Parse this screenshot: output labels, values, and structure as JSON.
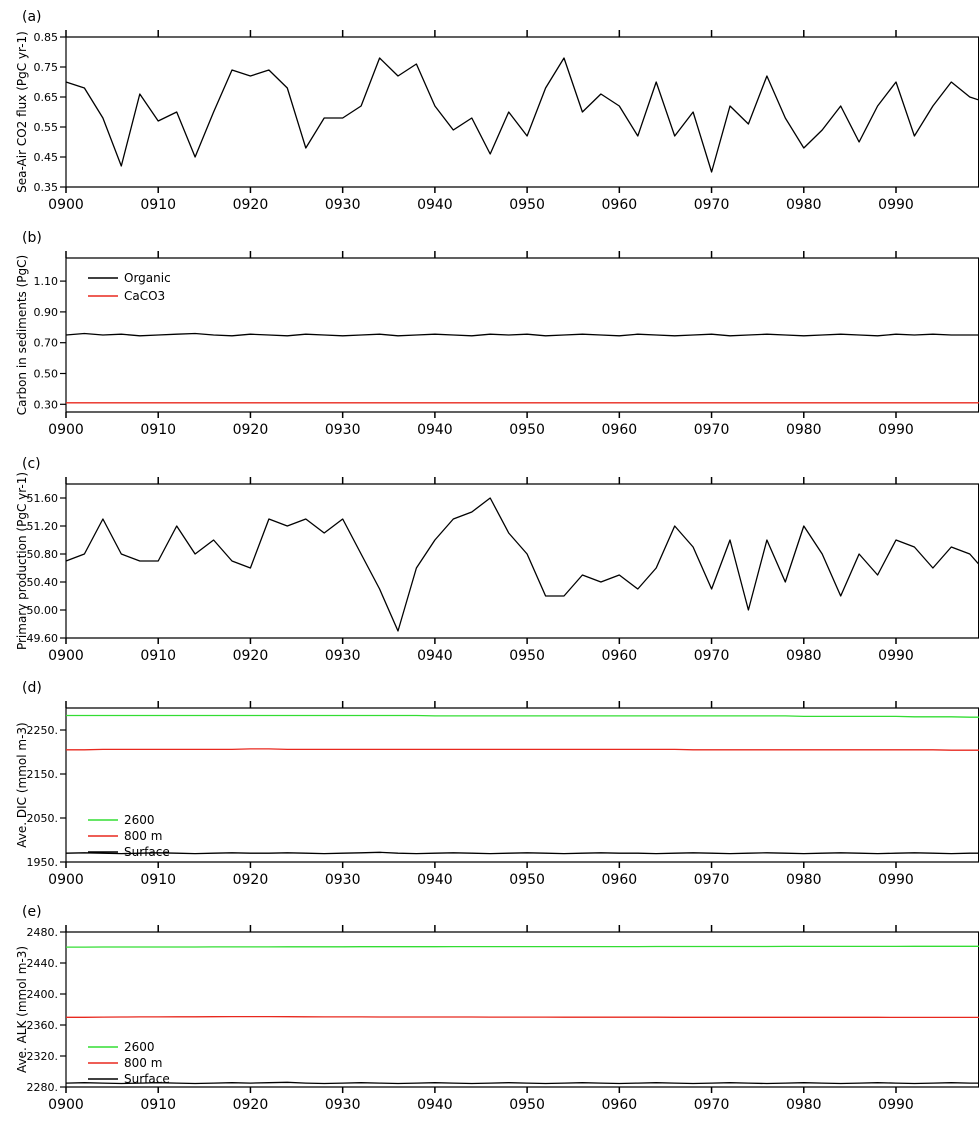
{
  "chart_data": [
    {
      "type": "line",
      "panel_label": "(a)",
      "ylabel": "Sea-Air CO2 flux (PgC yr-1)",
      "x": [
        900,
        902,
        904,
        906,
        908,
        910,
        912,
        914,
        916,
        918,
        920,
        922,
        924,
        926,
        928,
        930,
        932,
        934,
        936,
        938,
        940,
        942,
        944,
        946,
        948,
        950,
        952,
        954,
        956,
        958,
        960,
        962,
        964,
        966,
        968,
        970,
        972,
        974,
        976,
        978,
        980,
        982,
        984,
        986,
        988,
        990,
        992,
        994,
        996,
        998,
        999
      ],
      "ylim": [
        0.35,
        0.85
      ],
      "yticks": [
        "0.35",
        "0.45",
        "0.55",
        "0.65",
        "0.75",
        "0.85"
      ],
      "xlim": [
        900,
        999
      ],
      "xticks": [
        "0900",
        "0910",
        "0920",
        "0930",
        "0940",
        "0950",
        "0960",
        "0970",
        "0980",
        "0990"
      ],
      "legend": [],
      "series": [
        {
          "color": "#000000",
          "values": [
            0.7,
            0.68,
            0.58,
            0.42,
            0.66,
            0.57,
            0.6,
            0.45,
            0.6,
            0.74,
            0.72,
            0.74,
            0.68,
            0.48,
            0.58,
            0.58,
            0.62,
            0.78,
            0.72,
            0.76,
            0.62,
            0.54,
            0.58,
            0.46,
            0.6,
            0.52,
            0.68,
            0.78,
            0.6,
            0.66,
            0.62,
            0.52,
            0.7,
            0.52,
            0.6,
            0.4,
            0.62,
            0.56,
            0.72,
            0.58,
            0.48,
            0.54,
            0.62,
            0.5,
            0.62,
            0.7,
            0.52,
            0.62,
            0.7,
            0.65,
            0.64
          ]
        }
      ]
    },
    {
      "type": "line",
      "panel_label": "(b)",
      "ylabel": "Carbon in sediments (PgC)",
      "x": [
        900,
        902,
        904,
        906,
        908,
        910,
        912,
        914,
        916,
        918,
        920,
        922,
        924,
        926,
        928,
        930,
        932,
        934,
        936,
        938,
        940,
        942,
        944,
        946,
        948,
        950,
        952,
        954,
        956,
        958,
        960,
        962,
        964,
        966,
        968,
        970,
        972,
        974,
        976,
        978,
        980,
        982,
        984,
        986,
        988,
        990,
        992,
        994,
        996,
        998,
        999
      ],
      "ylim": [
        0.25,
        1.25
      ],
      "yticks": [
        "0.30",
        "0.50",
        "0.70",
        "0.90",
        "1.10"
      ],
      "xlim": [
        900,
        999
      ],
      "xticks": [
        "0900",
        "0910",
        "0920",
        "0930",
        "0940",
        "0950",
        "0960",
        "0970",
        "0980",
        "0990"
      ],
      "legend": [
        "Organic",
        "CaCO3"
      ],
      "series": [
        {
          "name": "Organic",
          "color": "#000000",
          "values": [
            0.75,
            0.76,
            0.75,
            0.755,
            0.745,
            0.75,
            0.755,
            0.76,
            0.75,
            0.745,
            0.755,
            0.75,
            0.745,
            0.755,
            0.75,
            0.745,
            0.75,
            0.755,
            0.745,
            0.75,
            0.755,
            0.75,
            0.745,
            0.755,
            0.75,
            0.755,
            0.745,
            0.75,
            0.755,
            0.75,
            0.745,
            0.755,
            0.75,
            0.745,
            0.75,
            0.755,
            0.745,
            0.75,
            0.755,
            0.75,
            0.745,
            0.75,
            0.755,
            0.75,
            0.745,
            0.755,
            0.75,
            0.755,
            0.75,
            0.75,
            0.75
          ]
        },
        {
          "name": "CaCO3",
          "color": "#e8281e",
          "values": [
            0.31,
            0.31,
            0.31,
            0.31,
            0.31,
            0.31,
            0.31,
            0.31,
            0.31,
            0.31,
            0.31,
            0.31,
            0.31,
            0.31,
            0.31,
            0.31,
            0.31,
            0.31,
            0.31,
            0.31,
            0.31,
            0.31,
            0.31,
            0.31,
            0.31,
            0.31,
            0.31,
            0.31,
            0.31,
            0.31,
            0.31,
            0.31,
            0.31,
            0.31,
            0.31,
            0.31,
            0.31,
            0.31,
            0.31,
            0.31,
            0.31,
            0.31,
            0.31,
            0.31,
            0.31,
            0.31,
            0.31,
            0.31,
            0.31,
            0.31,
            0.31
          ]
        }
      ]
    },
    {
      "type": "line",
      "panel_label": "(c)",
      "ylabel": "Primary production (PgC yr-1)",
      "x": [
        900,
        902,
        904,
        906,
        908,
        910,
        912,
        914,
        916,
        918,
        920,
        922,
        924,
        926,
        928,
        930,
        932,
        934,
        936,
        938,
        940,
        942,
        944,
        946,
        948,
        950,
        952,
        954,
        956,
        958,
        960,
        962,
        964,
        966,
        968,
        970,
        972,
        974,
        976,
        978,
        980,
        982,
        984,
        986,
        988,
        990,
        992,
        994,
        996,
        998,
        999
      ],
      "ylim": [
        49.6,
        51.8
      ],
      "yticks": [
        "49.60",
        "50.00",
        "50.40",
        "50.80",
        "51.20",
        "51.60"
      ],
      "xlim": [
        900,
        999
      ],
      "xticks": [
        "0900",
        "0910",
        "0920",
        "0930",
        "0940",
        "0950",
        "0960",
        "0970",
        "0980",
        "0990"
      ],
      "legend": [],
      "series": [
        {
          "color": "#000000",
          "values": [
            50.7,
            50.8,
            51.3,
            50.8,
            50.7,
            50.7,
            51.2,
            50.8,
            51.0,
            50.7,
            50.6,
            51.3,
            51.2,
            51.3,
            51.1,
            51.3,
            50.8,
            50.3,
            49.7,
            50.6,
            51.0,
            51.3,
            51.4,
            51.6,
            51.1,
            50.8,
            50.2,
            50.2,
            50.5,
            50.4,
            50.5,
            50.3,
            50.6,
            51.2,
            50.9,
            50.3,
            51.0,
            50.0,
            51.0,
            50.4,
            51.2,
            50.8,
            50.2,
            50.8,
            50.5,
            51.0,
            50.9,
            50.6,
            50.9,
            50.8,
            50.65
          ]
        }
      ]
    },
    {
      "type": "line",
      "panel_label": "(d)",
      "ylabel": "Ave. DIC (mmol m-3)",
      "x": [
        900,
        902,
        904,
        906,
        908,
        910,
        912,
        914,
        916,
        918,
        920,
        922,
        924,
        926,
        928,
        930,
        932,
        934,
        936,
        938,
        940,
        942,
        944,
        946,
        948,
        950,
        952,
        954,
        956,
        958,
        960,
        962,
        964,
        966,
        968,
        970,
        972,
        974,
        976,
        978,
        980,
        982,
        984,
        986,
        988,
        990,
        992,
        994,
        996,
        998,
        999
      ],
      "ylim": [
        1950,
        2300
      ],
      "yticks": [
        "1950.",
        "2050.",
        "2150.",
        "2250."
      ],
      "xlim": [
        900,
        999
      ],
      "xticks": [
        "0900",
        "0910",
        "0920",
        "0930",
        "0940",
        "0950",
        "0960",
        "0970",
        "0980",
        "0990"
      ],
      "legend": [
        "2600",
        "800 m",
        "Surface"
      ],
      "series": [
        {
          "name": "2600",
          "color": "#33dd33",
          "values": [
            2283,
            2283,
            2283,
            2283,
            2283,
            2283,
            2283,
            2283,
            2283,
            2283,
            2283,
            2283,
            2283,
            2283,
            2283,
            2283,
            2283,
            2283,
            2283,
            2283,
            2282,
            2282,
            2282,
            2282,
            2282,
            2282,
            2282,
            2282,
            2282,
            2282,
            2282,
            2282,
            2282,
            2282,
            2282,
            2282,
            2282,
            2282,
            2282,
            2282,
            2281,
            2281,
            2281,
            2281,
            2281,
            2281,
            2280,
            2280,
            2280,
            2279,
            2279
          ]
        },
        {
          "name": "800 m",
          "color": "#e8281e",
          "values": [
            2205,
            2205,
            2206,
            2206,
            2206,
            2206,
            2206,
            2206,
            2206,
            2206,
            2207,
            2207,
            2206,
            2206,
            2206,
            2206,
            2206,
            2206,
            2206,
            2206,
            2206,
            2206,
            2206,
            2206,
            2206,
            2206,
            2206,
            2206,
            2206,
            2206,
            2206,
            2206,
            2206,
            2206,
            2205,
            2205,
            2205,
            2205,
            2205,
            2205,
            2205,
            2205,
            2205,
            2205,
            2205,
            2205,
            2205,
            2205,
            2204,
            2204,
            2204
          ]
        },
        {
          "name": "Surface",
          "color": "#000000",
          "values": [
            1970,
            1971,
            1970,
            1969,
            1970,
            1971,
            1970,
            1969,
            1970,
            1971,
            1970,
            1970,
            1971,
            1970,
            1969,
            1970,
            1971,
            1972,
            1970,
            1969,
            1970,
            1971,
            1970,
            1969,
            1970,
            1971,
            1970,
            1969,
            1970,
            1971,
            1970,
            1970,
            1969,
            1970,
            1971,
            1970,
            1969,
            1970,
            1971,
            1970,
            1969,
            1970,
            1971,
            1970,
            1969,
            1970,
            1971,
            1970,
            1969,
            1970,
            1970
          ]
        }
      ]
    },
    {
      "type": "line",
      "panel_label": "(e)",
      "ylabel": "Ave. ALK (mmol m-3)",
      "x": [
        900,
        902,
        904,
        906,
        908,
        910,
        912,
        914,
        916,
        918,
        920,
        922,
        924,
        926,
        928,
        930,
        932,
        934,
        936,
        938,
        940,
        942,
        944,
        946,
        948,
        950,
        952,
        954,
        956,
        958,
        960,
        962,
        964,
        966,
        968,
        970,
        972,
        974,
        976,
        978,
        980,
        982,
        984,
        986,
        988,
        990,
        992,
        994,
        996,
        998,
        999
      ],
      "ylim": [
        2280,
        2480
      ],
      "yticks": [
        "2280.",
        "2320.",
        "2360.",
        "2400.",
        "2440.",
        "2480."
      ],
      "xlim": [
        900,
        999
      ],
      "xticks": [
        "0900",
        "0910",
        "0920",
        "0930",
        "0940",
        "0950",
        "0960",
        "0970",
        "0980",
        "0990"
      ],
      "legend": [
        "2600",
        "800 m",
        "Surface"
      ],
      "series": [
        {
          "name": "2600",
          "color": "#33dd33",
          "values": [
            2460.5,
            2460.5,
            2460.6,
            2460.6,
            2460.6,
            2460.7,
            2460.7,
            2460.7,
            2460.8,
            2460.8,
            2460.8,
            2460.8,
            2460.9,
            2460.9,
            2460.9,
            2460.9,
            2461.0,
            2461.0,
            2461.0,
            2461.0,
            2461.0,
            2461.1,
            2461.1,
            2461.1,
            2461.1,
            2461.1,
            2461.2,
            2461.2,
            2461.2,
            2461.2,
            2461.2,
            2461.2,
            2461.3,
            2461.3,
            2461.3,
            2461.3,
            2461.3,
            2461.3,
            2461.3,
            2461.4,
            2461.4,
            2461.4,
            2461.4,
            2461.4,
            2461.4,
            2461.4,
            2461.5,
            2461.5,
            2461.5,
            2461.5,
            2461.5
          ]
        },
        {
          "name": "800 m",
          "color": "#e8281e",
          "values": [
            2370,
            2370,
            2370.2,
            2370.3,
            2370.4,
            2370.5,
            2370.6,
            2370.6,
            2370.7,
            2370.8,
            2370.8,
            2370.8,
            2370.7,
            2370.6,
            2370.5,
            2370.4,
            2370.4,
            2370.3,
            2370.3,
            2370.3,
            2370.3,
            2370.3,
            2370.3,
            2370.2,
            2370.2,
            2370.2,
            2370.2,
            2370.1,
            2370.1,
            2370.1,
            2370.1,
            2370.1,
            2370.1,
            2370.0,
            2370.0,
            2370.0,
            2370.0,
            2370.0,
            2370.0,
            2369.9,
            2369.9,
            2369.9,
            2369.9,
            2369.9,
            2369.9,
            2369.8,
            2369.8,
            2369.8,
            2369.8,
            2369.8,
            2369.8
          ]
        },
        {
          "name": "Surface",
          "color": "#000000",
          "values": [
            2285,
            2285.5,
            2285,
            2284.5,
            2285,
            2285.5,
            2285,
            2284.5,
            2285,
            2285.5,
            2285,
            2285.5,
            2286,
            2285,
            2284.5,
            2285,
            2285.5,
            2285,
            2284.5,
            2285,
            2285.5,
            2285,
            2284.5,
            2285,
            2285.5,
            2285,
            2284.5,
            2285,
            2285.5,
            2285,
            2284.5,
            2285,
            2285.5,
            2285,
            2284.5,
            2285,
            2285.5,
            2285,
            2284.5,
            2285,
            2285.5,
            2285,
            2284.5,
            2285,
            2285.5,
            2285,
            2284.5,
            2285,
            2285.5,
            2285,
            2285
          ]
        }
      ]
    }
  ]
}
